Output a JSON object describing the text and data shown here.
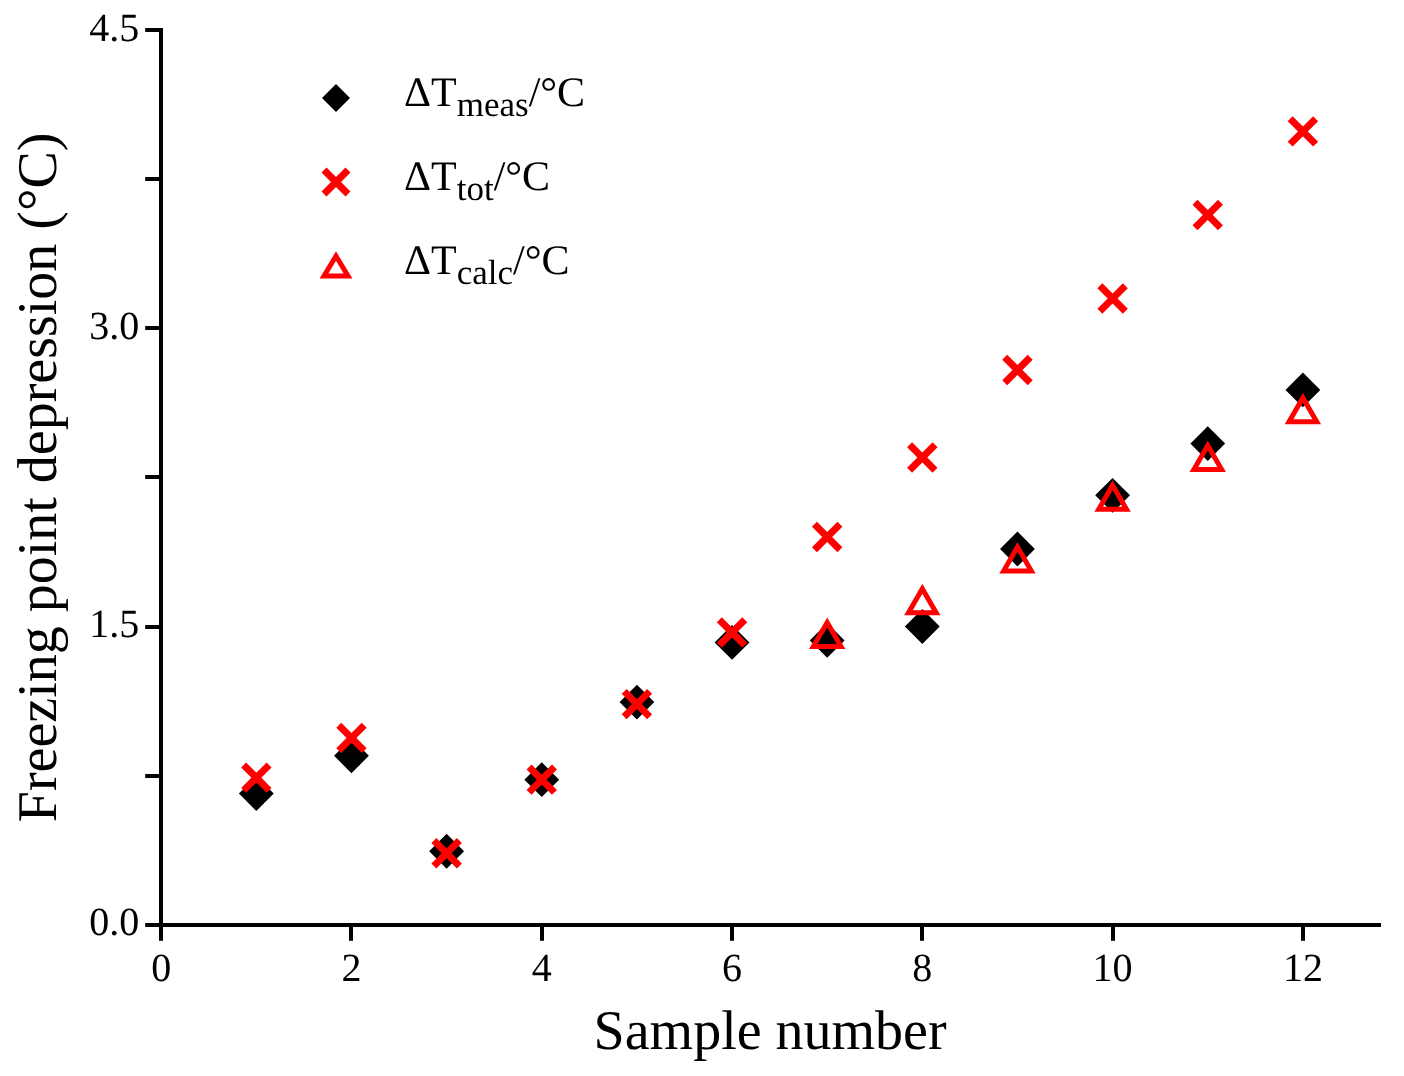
{
  "chart_data": {
    "type": "scatter",
    "xlabel": "Sample number",
    "ylabel": "Freezing point depression (°C)",
    "x": [
      1,
      2,
      3,
      4,
      5,
      6,
      7,
      8,
      9,
      10,
      11,
      12
    ],
    "xlim": [
      0,
      12.8
    ],
    "xticks": [
      0,
      2,
      4,
      6,
      8,
      10,
      12
    ],
    "ylim": [
      0,
      4.5
    ],
    "yticks": [
      {
        "value": 0,
        "label": "0.0"
      },
      {
        "value": 0.75,
        "label": null
      },
      {
        "value": 1.5,
        "label": "1.5"
      },
      {
        "value": 2.25,
        "label": null
      },
      {
        "value": 3.0,
        "label": "3.0"
      },
      {
        "value": 3.75,
        "label": null
      },
      {
        "value": 4.5,
        "label": "4.5"
      }
    ],
    "grid": false,
    "legend": "top left",
    "series": [
      {
        "name": "ΔT$_{meas}$/°C",
        "color": "#000000",
        "marker": "diamond",
        "values": [
          0.66,
          0.85,
          0.37,
          0.73,
          1.12,
          1.42,
          1.43,
          1.5,
          1.89,
          2.16,
          2.42,
          2.69
        ]
      },
      {
        "name": "ΔT$_{tot}$/°C",
        "color": "#ff0000",
        "marker": "cross",
        "values": [
          0.74,
          0.94,
          0.36,
          0.73,
          1.11,
          1.47,
          1.95,
          2.35,
          2.79,
          3.15,
          3.57,
          3.99
        ]
      },
      {
        "name": "ΔT$_{calc}$/°C",
        "color": "#ff0000",
        "marker": "triangle",
        "values": [
          null,
          null,
          null,
          null,
          null,
          null,
          1.44,
          1.61,
          1.82,
          2.13,
          2.33,
          2.57
        ]
      }
    ]
  }
}
